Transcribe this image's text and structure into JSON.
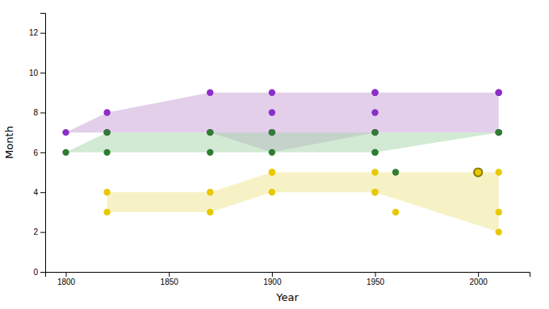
{
  "chart_data": {
    "type": "scatter",
    "xlabel": "Year",
    "ylabel": "Month",
    "xlim": [
      1790,
      2025
    ],
    "ylim": [
      0,
      13
    ],
    "xticks": [
      1800,
      1850,
      1900,
      1950,
      2000
    ],
    "yticks": [
      0,
      2,
      4,
      6,
      8,
      10,
      12
    ],
    "grid": false,
    "series": [
      {
        "type": "area",
        "color": "#C99FD8",
        "x": [
          1800,
          1820,
          1870,
          1900,
          1950,
          2010
        ],
        "upper": [
          7,
          8,
          9,
          9,
          9,
          9
        ],
        "lower": [
          7,
          7,
          7,
          6,
          7,
          7
        ]
      },
      {
        "type": "area",
        "color": "#A5D6A7",
        "x": [
          1800,
          1820,
          1870,
          1900,
          1950,
          2010
        ],
        "upper": [
          6,
          7,
          7,
          7,
          7,
          7
        ],
        "lower": [
          6,
          6,
          6,
          6,
          6,
          7
        ]
      },
      {
        "type": "area",
        "color": "#F0E68C",
        "x": [
          1820,
          1870,
          1900,
          1950,
          2010
        ],
        "upper": [
          4,
          4,
          5,
          5,
          5
        ],
        "lower": [
          3,
          3,
          4,
          4,
          2
        ]
      },
      {
        "type": "scatter",
        "color": "#8B2FC9",
        "marker": "circle",
        "x": [
          1800,
          1820,
          1820,
          1870,
          1870,
          1900,
          1900,
          1900,
          1950,
          1950,
          1950,
          1950,
          2010,
          2010,
          2010
        ],
        "values": [
          7,
          8,
          7,
          9,
          7,
          8,
          9,
          7,
          9,
          9,
          8,
          7,
          9,
          9,
          7
        ]
      },
      {
        "type": "scatter",
        "color": "#2E7D32",
        "marker": "circle",
        "x": [
          1800,
          1820,
          1820,
          1870,
          1870,
          1900,
          1900,
          1950,
          1950,
          1950,
          1960,
          2010,
          2010
        ],
        "values": [
          6,
          7,
          6,
          6,
          7,
          6,
          7,
          6,
          7,
          6,
          5,
          7,
          7
        ]
      },
      {
        "type": "scatter",
        "color": "#E8C800",
        "marker": "circle",
        "x": [
          1820,
          1820,
          1870,
          1870,
          1900,
          1900,
          1900,
          1950,
          1950,
          1950,
          1960,
          2010,
          2010,
          2010
        ],
        "values": [
          3,
          4,
          3,
          4,
          5,
          5,
          4,
          5,
          4,
          4,
          3,
          5,
          3,
          2
        ]
      },
      {
        "type": "scatter",
        "color": "#E8C800",
        "marker": "outlined",
        "x": [
          2000,
          2000
        ],
        "values": [
          5,
          5
        ]
      }
    ]
  }
}
